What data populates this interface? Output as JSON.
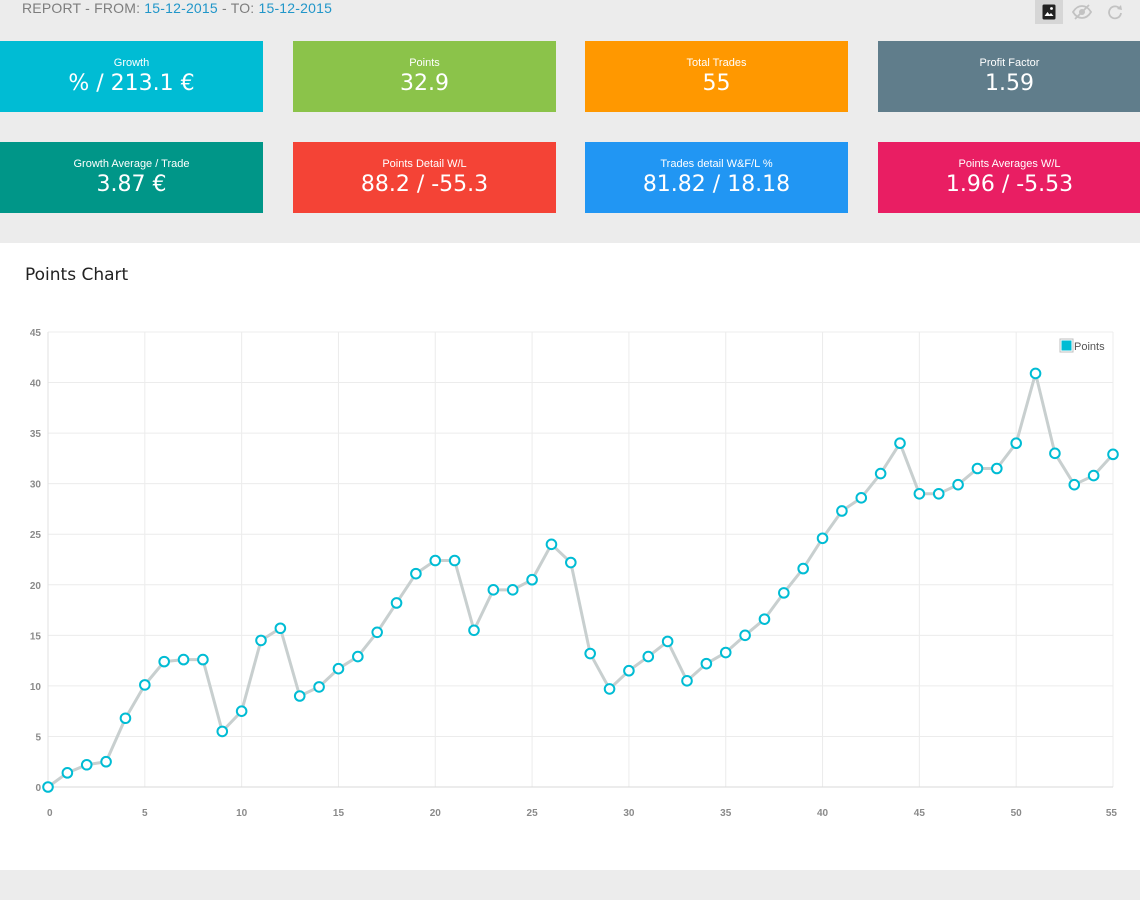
{
  "header": {
    "report_prefix": "REPORT - FROM: ",
    "from_date": "15-12-2015",
    "to_prefix": " - TO: ",
    "to_date": "15-12-2015",
    "toolbar_icons": [
      "image-bookmark-icon",
      "eye-off-icon",
      "refresh-icon"
    ]
  },
  "tiles": [
    {
      "label": "Growth",
      "value": "% / 213.1 €",
      "color": "#00bcd4"
    },
    {
      "label": "Points",
      "value": "32.9",
      "color": "#8bc34a"
    },
    {
      "label": "Total Trades",
      "value": "55",
      "color": "#ff9800"
    },
    {
      "label": "Profit Factor",
      "value": "1.59",
      "color": "#607d8b"
    },
    {
      "label": "Growth Average / Trade",
      "value": "3.87 €",
      "color": "#009688"
    },
    {
      "label": "Points Detail W/L",
      "value": "88.2 / -55.3",
      "color": "#f44336"
    },
    {
      "label": "Trades detail W&F/L %",
      "value": "81.82 / 18.18",
      "color": "#2196f3"
    },
    {
      "label": "Points Averages W/L",
      "value": "1.96 / -5.53",
      "color": "#e91e63"
    }
  ],
  "panel": {
    "title": "Points Chart"
  },
  "chart_data": {
    "type": "line",
    "title": "",
    "xlabel": "",
    "ylabel": "",
    "xlim": [
      0,
      55
    ],
    "ylim": [
      0,
      45
    ],
    "x_ticks": [
      0,
      5,
      10,
      15,
      20,
      25,
      30,
      35,
      40,
      45,
      50,
      55
    ],
    "y_ticks": [
      0,
      5,
      10,
      15,
      20,
      25,
      30,
      35,
      40,
      45
    ],
    "grid": true,
    "legend_position": "top-right",
    "series_color": "#00bcd4",
    "line_color": "#c8cfcf",
    "series": [
      {
        "name": "Points",
        "x": [
          0,
          1,
          2,
          3,
          4,
          5,
          6,
          7,
          8,
          9,
          10,
          11,
          12,
          13,
          14,
          15,
          16,
          17,
          18,
          19,
          20,
          21,
          22,
          23,
          24,
          25,
          26,
          27,
          28,
          29,
          30,
          31,
          32,
          33,
          34,
          35,
          36,
          37,
          38,
          39,
          40,
          41,
          42,
          43,
          44,
          45,
          46,
          47,
          48,
          49,
          50,
          51,
          52,
          53,
          54,
          55
        ],
        "values": [
          0.0,
          1.4,
          2.2,
          2.5,
          6.8,
          10.1,
          12.4,
          12.6,
          12.6,
          5.5,
          7.5,
          14.5,
          15.7,
          9.0,
          9.9,
          11.7,
          12.9,
          15.3,
          18.2,
          21.1,
          22.4,
          22.4,
          15.5,
          19.5,
          19.5,
          20.5,
          24.0,
          22.2,
          13.2,
          9.7,
          11.5,
          12.9,
          14.4,
          10.5,
          12.2,
          13.3,
          15.0,
          16.6,
          19.2,
          21.6,
          24.6,
          27.3,
          28.6,
          31.0,
          34.0,
          29.0,
          29.0,
          29.9,
          31.5,
          31.5,
          34.0,
          40.9,
          33.0,
          29.9,
          30.8,
          32.9
        ]
      }
    ]
  }
}
